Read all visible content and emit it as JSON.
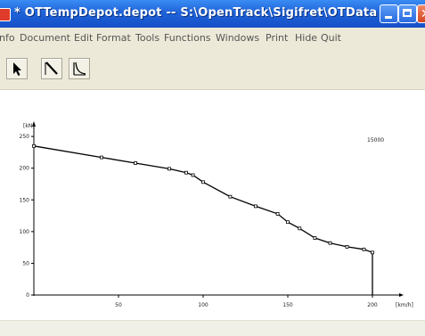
{
  "window": {
    "title": "* OTTempDepot.depot  --  S:\\OpenTrack\\Sigifret\\OTData",
    "title_color": "#ffffff",
    "titlebar_color": "#1f63d8"
  },
  "window_controls": {
    "minimize_icon": "minimize-icon",
    "maximize_icon": "maximize-icon",
    "close_icon": "close-icon"
  },
  "menu": {
    "items": [
      "nfo",
      "Document",
      "Edit",
      "Format",
      "Tools",
      "Functions",
      "Windows",
      "Print",
      "Hide",
      "Quit"
    ]
  },
  "toolbar": {
    "tools": [
      {
        "icon": "arrow-select-icon"
      },
      {
        "icon": "diagonal-line-icon"
      },
      {
        "icon": "curve-icon"
      }
    ]
  },
  "chart_data": {
    "type": "line",
    "xlabel": "[km/h]",
    "ylabel": "[kN]",
    "annotation": "15000",
    "xlim": [
      0,
      200
    ],
    "ylim": [
      0,
      260
    ],
    "x_ticks": [
      50,
      100,
      150,
      200
    ],
    "y_ticks": [
      0,
      50,
      100,
      150,
      200,
      250
    ],
    "grid": false,
    "series": [
      {
        "x": [
          0,
          40,
          60,
          80,
          90,
          94,
          100,
          116,
          131,
          144,
          150,
          157,
          166,
          175,
          185,
          195,
          200
        ],
        "y": [
          235,
          217,
          208,
          199,
          193,
          189,
          178,
          155,
          140,
          128,
          115,
          105,
          90,
          82,
          76,
          72,
          67
        ]
      }
    ],
    "drop_to_zero_at_x": 200
  }
}
